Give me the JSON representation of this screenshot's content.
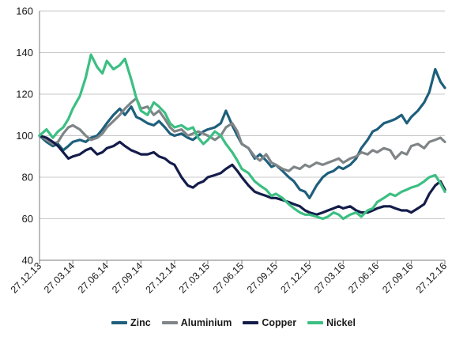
{
  "chart_data": {
    "type": "line",
    "title": "",
    "xlabel": "",
    "ylabel": "",
    "ylim": [
      40,
      160
    ],
    "yticks": [
      "40",
      "60",
      "80",
      "100",
      "120",
      "140",
      "160"
    ],
    "xlim": [
      "27.12.13",
      "27.12.16"
    ],
    "xticks": [
      "27.12.13",
      "27.03.14",
      "27.06.14",
      "27.09.14",
      "27.12.14",
      "27.03.15",
      "27.06.15",
      "27.09.15",
      "27.12.15",
      "27.03.16",
      "27.06.16",
      "27.09.16",
      "27.12.16"
    ],
    "grid": "horizontal",
    "legend_position": "bottom",
    "series": [
      {
        "name": "Zinc",
        "color": "#1e5f7c",
        "x": [
          "27.12.13",
          "15.01.14",
          "01.02.14",
          "15.02.14",
          "01.03.14",
          "15.03.14",
          "27.03.14",
          "15.04.14",
          "01.05.14",
          "15.05.14",
          "01.06.14",
          "15.06.14",
          "27.06.14",
          "15.07.14",
          "01.08.14",
          "15.08.14",
          "01.09.14",
          "15.09.14",
          "27.09.14",
          "15.10.14",
          "01.11.14",
          "15.11.14",
          "01.12.14",
          "15.12.14",
          "27.12.14",
          "15.01.15",
          "01.02.15",
          "15.02.15",
          "01.03.15",
          "15.03.15",
          "27.03.15",
          "15.04.15",
          "01.05.15",
          "15.05.15",
          "01.06.15",
          "15.06.15",
          "27.06.15",
          "15.07.15",
          "01.08.15",
          "15.08.15",
          "01.09.15",
          "15.09.15",
          "27.09.15",
          "15.10.15",
          "01.11.15",
          "15.11.15",
          "01.12.15",
          "15.12.15",
          "27.12.15",
          "15.01.16",
          "01.02.16",
          "15.02.16",
          "01.03.16",
          "15.03.16",
          "27.03.16",
          "15.04.16",
          "01.05.16",
          "15.05.16",
          "01.06.16",
          "15.06.16",
          "27.06.16",
          "15.07.16",
          "01.08.16",
          "15.08.16",
          "01.09.16",
          "15.09.16",
          "27.09.16",
          "15.10.16",
          "01.11.16",
          "15.11.16",
          "01.12.16",
          "15.12.16",
          "27.12.16"
        ],
        "values": [
          100,
          97,
          95,
          96,
          93,
          95,
          97,
          98,
          97,
          99,
          100,
          103,
          106,
          110,
          113,
          110,
          114,
          109,
          108,
          106,
          105,
          107,
          104,
          101,
          100,
          101,
          99,
          98,
          100,
          102,
          103,
          104,
          106,
          112,
          105,
          100,
          96,
          94,
          89,
          91,
          88,
          85,
          86,
          83,
          80,
          78,
          74,
          73,
          70,
          76,
          80,
          82,
          83,
          85,
          84,
          86,
          89,
          94,
          98,
          102,
          103,
          106,
          107,
          108,
          110,
          106,
          109,
          112,
          116,
          121,
          132,
          126,
          123
        ]
      },
      {
        "name": "Aluminium",
        "color": "#7f8587",
        "x": [
          "27.12.13",
          "15.01.14",
          "01.02.14",
          "15.02.14",
          "01.03.14",
          "15.03.14",
          "27.03.14",
          "15.04.14",
          "01.05.14",
          "15.05.14",
          "01.06.14",
          "15.06.14",
          "27.06.14",
          "15.07.14",
          "01.08.14",
          "15.08.14",
          "01.09.14",
          "15.09.14",
          "27.09.14",
          "15.10.14",
          "01.11.14",
          "15.11.14",
          "01.12.14",
          "15.12.14",
          "27.12.14",
          "15.01.15",
          "01.02.15",
          "15.02.15",
          "01.03.15",
          "15.03.15",
          "27.03.15",
          "15.04.15",
          "01.05.15",
          "15.05.15",
          "01.06.15",
          "15.06.15",
          "27.06.15",
          "15.07.15",
          "01.08.15",
          "15.08.15",
          "01.09.15",
          "15.09.15",
          "27.09.15",
          "15.10.15",
          "01.11.15",
          "15.11.15",
          "01.12.15",
          "15.12.15",
          "27.12.15",
          "15.01.16",
          "01.02.16",
          "15.02.16",
          "01.03.16",
          "15.03.16",
          "27.03.16",
          "15.04.16",
          "01.05.16",
          "15.05.16",
          "01.06.16",
          "15.06.16",
          "27.06.16",
          "15.07.16",
          "01.08.16",
          "15.08.16",
          "01.09.16",
          "15.09.16",
          "27.09.16",
          "15.10.16",
          "01.11.16",
          "15.11.16",
          "01.12.16",
          "15.12.16",
          "27.12.16"
        ],
        "values": [
          100,
          98,
          96,
          97,
          101,
          104,
          105,
          103,
          100,
          98,
          99,
          101,
          104,
          107,
          110,
          113,
          116,
          118,
          113,
          114,
          110,
          112,
          108,
          104,
          102,
          103,
          100,
          101,
          102,
          101,
          100,
          98,
          100,
          104,
          106,
          102,
          96,
          94,
          90,
          88,
          91,
          87,
          86,
          84,
          83,
          85,
          84,
          86,
          85,
          87,
          86,
          87,
          88,
          89,
          87,
          89,
          90,
          92,
          91,
          93,
          92,
          94,
          93,
          89,
          92,
          91,
          95,
          96,
          94,
          97,
          98,
          99,
          97
        ]
      },
      {
        "name": "Copper",
        "color": "#141c49",
        "x": [
          "27.12.13",
          "15.01.14",
          "01.02.14",
          "15.02.14",
          "01.03.14",
          "15.03.14",
          "27.03.14",
          "15.04.14",
          "01.05.14",
          "15.05.14",
          "01.06.14",
          "15.06.14",
          "27.06.14",
          "15.07.14",
          "01.08.14",
          "15.08.14",
          "01.09.14",
          "15.09.14",
          "27.09.14",
          "15.10.14",
          "01.11.14",
          "15.11.14",
          "01.12.14",
          "15.12.14",
          "27.12.14",
          "15.01.15",
          "01.02.15",
          "15.02.15",
          "01.03.15",
          "15.03.15",
          "27.03.15",
          "15.04.15",
          "01.05.15",
          "15.05.15",
          "01.06.15",
          "15.06.15",
          "27.06.15",
          "15.07.15",
          "01.08.15",
          "15.08.15",
          "01.09.15",
          "15.09.15",
          "27.09.15",
          "15.10.15",
          "01.11.15",
          "15.11.15",
          "01.12.15",
          "15.12.15",
          "27.12.15",
          "15.01.16",
          "01.02.16",
          "15.02.16",
          "01.03.16",
          "15.03.16",
          "27.03.16",
          "15.04.16",
          "01.05.16",
          "15.05.16",
          "01.06.16",
          "15.06.16",
          "27.06.16",
          "15.07.16",
          "01.08.16",
          "15.08.16",
          "01.09.16",
          "15.09.16",
          "27.09.16",
          "15.10.16",
          "01.11.16",
          "15.11.16",
          "01.12.16",
          "15.12.16",
          "27.12.16"
        ],
        "values": [
          100,
          99,
          97,
          95,
          92,
          89,
          90,
          91,
          93,
          94,
          91,
          92,
          94,
          95,
          97,
          95,
          93,
          92,
          91,
          91,
          92,
          90,
          89,
          87,
          86,
          80,
          76,
          75,
          77,
          78,
          80,
          81,
          82,
          84,
          86,
          83,
          80,
          76,
          73,
          72,
          71,
          70,
          70,
          69,
          68,
          67,
          66,
          64,
          63,
          62,
          63,
          64,
          65,
          66,
          65,
          66,
          64,
          63,
          63,
          64,
          65,
          66,
          66,
          65,
          64,
          64,
          63,
          65,
          67,
          72,
          76,
          78,
          74
        ]
      },
      {
        "name": "Nickel",
        "color": "#3cbf82",
        "x": [
          "27.12.13",
          "15.01.14",
          "01.02.14",
          "15.02.14",
          "01.03.14",
          "15.03.14",
          "27.03.14",
          "15.04.14",
          "01.05.14",
          "15.05.14",
          "01.06.14",
          "15.06.14",
          "27.06.14",
          "15.07.14",
          "01.08.14",
          "15.08.14",
          "01.09.14",
          "15.09.14",
          "27.09.14",
          "15.10.14",
          "01.11.14",
          "15.11.14",
          "01.12.14",
          "15.12.14",
          "27.12.14",
          "15.01.15",
          "01.02.15",
          "15.02.15",
          "01.03.15",
          "15.03.15",
          "27.03.15",
          "15.04.15",
          "01.05.15",
          "15.05.15",
          "01.06.15",
          "15.06.15",
          "27.06.15",
          "15.07.15",
          "01.08.15",
          "15.08.15",
          "01.09.15",
          "15.09.15",
          "27.09.15",
          "15.10.15",
          "01.11.15",
          "15.11.15",
          "01.12.15",
          "15.12.15",
          "27.12.15",
          "15.01.16",
          "01.02.16",
          "15.02.16",
          "01.03.16",
          "15.03.16",
          "27.03.16",
          "15.04.16",
          "01.05.16",
          "15.05.16",
          "01.06.16",
          "15.06.16",
          "27.06.16",
          "15.07.16",
          "01.08.16",
          "15.08.16",
          "01.09.16",
          "15.09.16",
          "27.09.16",
          "15.10.16",
          "01.11.16",
          "15.11.16",
          "01.12.16",
          "15.12.16",
          "27.12.16"
        ],
        "values": [
          100,
          103,
          99,
          102,
          104,
          108,
          113,
          119,
          128,
          139,
          133,
          130,
          136,
          132,
          134,
          137,
          127,
          118,
          112,
          110,
          116,
          114,
          111,
          106,
          104,
          105,
          103,
          104,
          99,
          96,
          98,
          102,
          100,
          96,
          92,
          88,
          84,
          82,
          78,
          76,
          74,
          71,
          72,
          70,
          67,
          65,
          63,
          62,
          62,
          61,
          60,
          61,
          63,
          62,
          60,
          62,
          63,
          61,
          64,
          65,
          68,
          70,
          72,
          71,
          73,
          74,
          75,
          76,
          78,
          80,
          81,
          77,
          73
        ]
      }
    ]
  }
}
